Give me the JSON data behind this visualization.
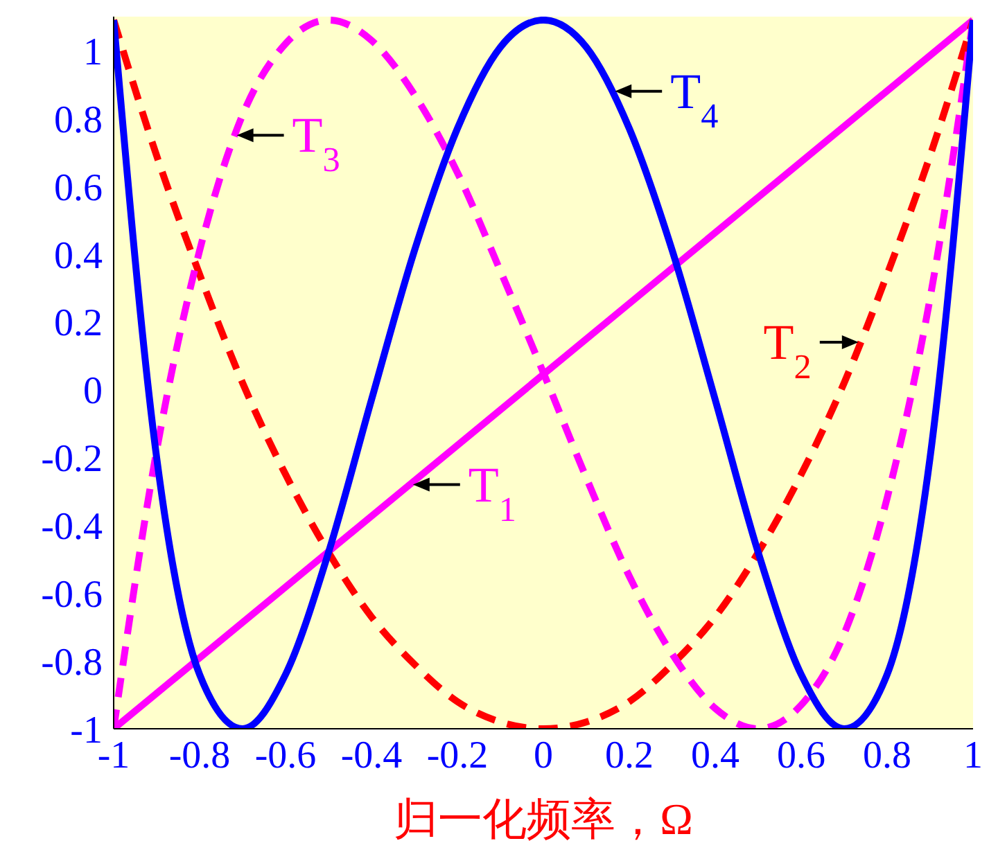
{
  "chart_data": {
    "type": "line",
    "xlabel": "归一化频率，Ω",
    "x": [
      -1,
      -0.9,
      -0.8,
      -0.7,
      -0.6,
      -0.5,
      -0.4,
      -0.3,
      -0.2,
      -0.1,
      0,
      0.1,
      0.2,
      0.3,
      0.4,
      0.5,
      0.6,
      0.7,
      0.8,
      0.9,
      1
    ],
    "series": [
      {
        "color": "#ff00ff",
        "line_style": "solid",
        "x": [
          -1,
          1
        ],
        "values": [
          -1,
          1.09
        ]
      },
      {
        "color": "#ff0000",
        "line_style": "dashed",
        "values": [
          1.09,
          0.69,
          0.34,
          0.02,
          -0.25,
          -0.48,
          -0.67,
          -0.81,
          -0.92,
          -0.98,
          -1,
          -0.98,
          -0.92,
          -0.81,
          -0.67,
          -0.48,
          -0.25,
          0.02,
          0.34,
          0.69,
          1.09
        ]
      },
      {
        "color": "#ff00ff",
        "line_style": "dashed",
        "values": [
          -1,
          -0.18,
          0.41,
          0.81,
          1.02,
          1.09,
          1.03,
          0.87,
          0.64,
          0.35,
          0.05,
          -0.26,
          -0.55,
          -0.78,
          -0.94,
          -1,
          -0.93,
          -0.72,
          -0.32,
          0.27,
          1.09
        ]
      },
      {
        "color": "#0000ff",
        "line_style": "solid",
        "values": [
          1.09,
          -0.2,
          -0.84,
          -1,
          -0.84,
          -0.48,
          -0.03,
          0.41,
          0.77,
          1.01,
          1.09,
          1.01,
          0.77,
          0.41,
          -0.03,
          -0.48,
          -0.84,
          -1,
          -0.84,
          -0.2,
          1.09
        ]
      }
    ],
    "annotations": [
      {
        "text": "T$_{1}$",
        "x": -0.31,
        "y": -0.28
      },
      {
        "text": "T$_{2}$",
        "x": 0.74,
        "y": 0.14
      },
      {
        "text": "T$_{3}$",
        "x": -0.72,
        "y": 0.75
      },
      {
        "text": "T$_{4}$",
        "x": 0.16,
        "y": 0.88
      }
    ],
    "xlim": [
      -1,
      1
    ],
    "xticks": [
      -1,
      -0.8,
      -0.6,
      -0.4,
      -0.2,
      0,
      0.2,
      0.4,
      0.6,
      0.8,
      1
    ],
    "ylim": [
      -1,
      1.1
    ],
    "yticks": [
      -1,
      -0.8,
      -0.6,
      -0.4,
      -0.2,
      0,
      0.2,
      0.4,
      0.6,
      0.8,
      1
    ],
    "grid": false,
    "legend": false,
    "marker": "none"
  }
}
